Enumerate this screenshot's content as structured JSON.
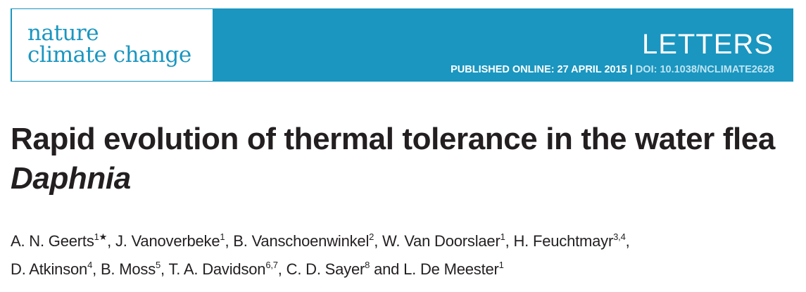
{
  "journal": {
    "logo_line_1": "nature",
    "logo_line_2": "climate change"
  },
  "section_label": "LETTERS",
  "publication": {
    "published_online": "PUBLISHED ONLINE: 27 APRIL 2015",
    "separator": " | ",
    "doi": "DOI: 10.1038/NCLIMATE2628"
  },
  "title": {
    "main": "Rapid evolution of thermal tolerance in the water flea ",
    "italic": "Daphnia"
  },
  "authors": [
    {
      "name": "A. N. Geerts",
      "sup": "1★",
      "sep": ", "
    },
    {
      "name": "J. Vanoverbeke",
      "sup": "1",
      "sep": ", "
    },
    {
      "name": "B. Vanschoenwinkel",
      "sup": "2",
      "sep": ", "
    },
    {
      "name": "W. Van Doorslaer",
      "sup": "1",
      "sep": ", "
    },
    {
      "name": "H. Feuchtmayr",
      "sup": "3,4",
      "sep": ", "
    },
    {
      "name": "D. Atkinson",
      "sup": "4",
      "sep": ", "
    },
    {
      "name": "B. Moss",
      "sup": "5",
      "sep": ", "
    },
    {
      "name": "T. A. Davidson",
      "sup": "6,7",
      "sep": ", "
    },
    {
      "name": "C. D. Sayer",
      "sup": "8",
      "sep": " and "
    },
    {
      "name": "L. De Meester",
      "sup": "1",
      "sep": ""
    }
  ]
}
